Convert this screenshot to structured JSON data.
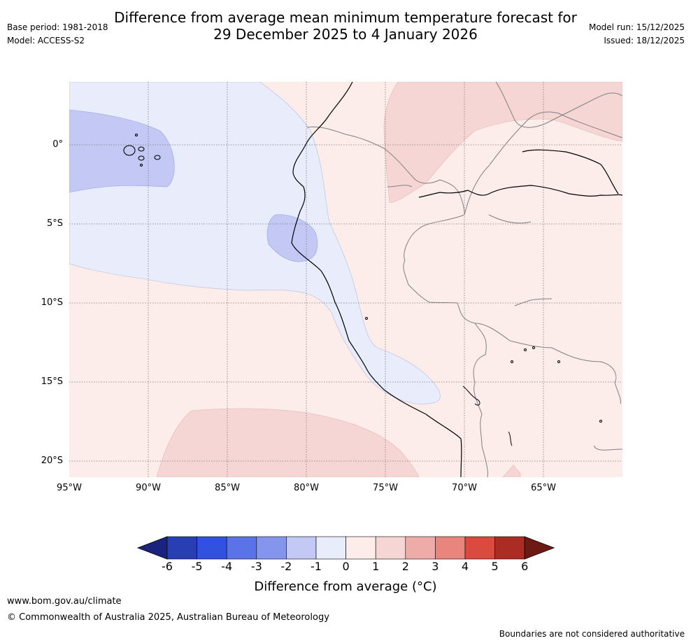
{
  "header": {
    "title_line1": "Difference from average mean minimum temperature forecast for",
    "title_line2": "29 December 2025 to 4 January 2026",
    "base_period": "Base period: 1981-2018",
    "model": "Model: ACCESS-S2",
    "model_run": "Model run: 15/12/2025",
    "issued": "Issued: 18/12/2025"
  },
  "map": {
    "lat_labels": [
      "0°",
      "5°S",
      "10°S",
      "15°S",
      "20°S"
    ],
    "lon_labels": [
      "95°W",
      "90°W",
      "85°W",
      "80°W",
      "75°W",
      "70°W",
      "65°W"
    ],
    "extent": {
      "lon_min": -95,
      "lon_max": -60,
      "lat_min": -21,
      "lat_max": 4
    }
  },
  "legend": {
    "ticks": [
      "-6",
      "-5",
      "-4",
      "-3",
      "-2",
      "-1",
      "0",
      "1",
      "2",
      "3",
      "4",
      "5",
      "6"
    ],
    "colors": [
      "#1a237e",
      "#283eb3",
      "#3351e0",
      "#5a73e6",
      "#8595ec",
      "#c3c9f4",
      "#e8ecfb",
      "#fcecea",
      "#f5d6d4",
      "#eeaca8",
      "#e8867e",
      "#da4a3e",
      "#ab2c22",
      "#6e1a14"
    ],
    "label": "Difference from average (°C)"
  },
  "footer": {
    "website": "www.bom.gov.au/climate",
    "copyright": "© Commonwealth of Australia 2025, Australian Bureau of Meteorology",
    "boundary_note": "Boundaries are not considered authoritative"
  }
}
